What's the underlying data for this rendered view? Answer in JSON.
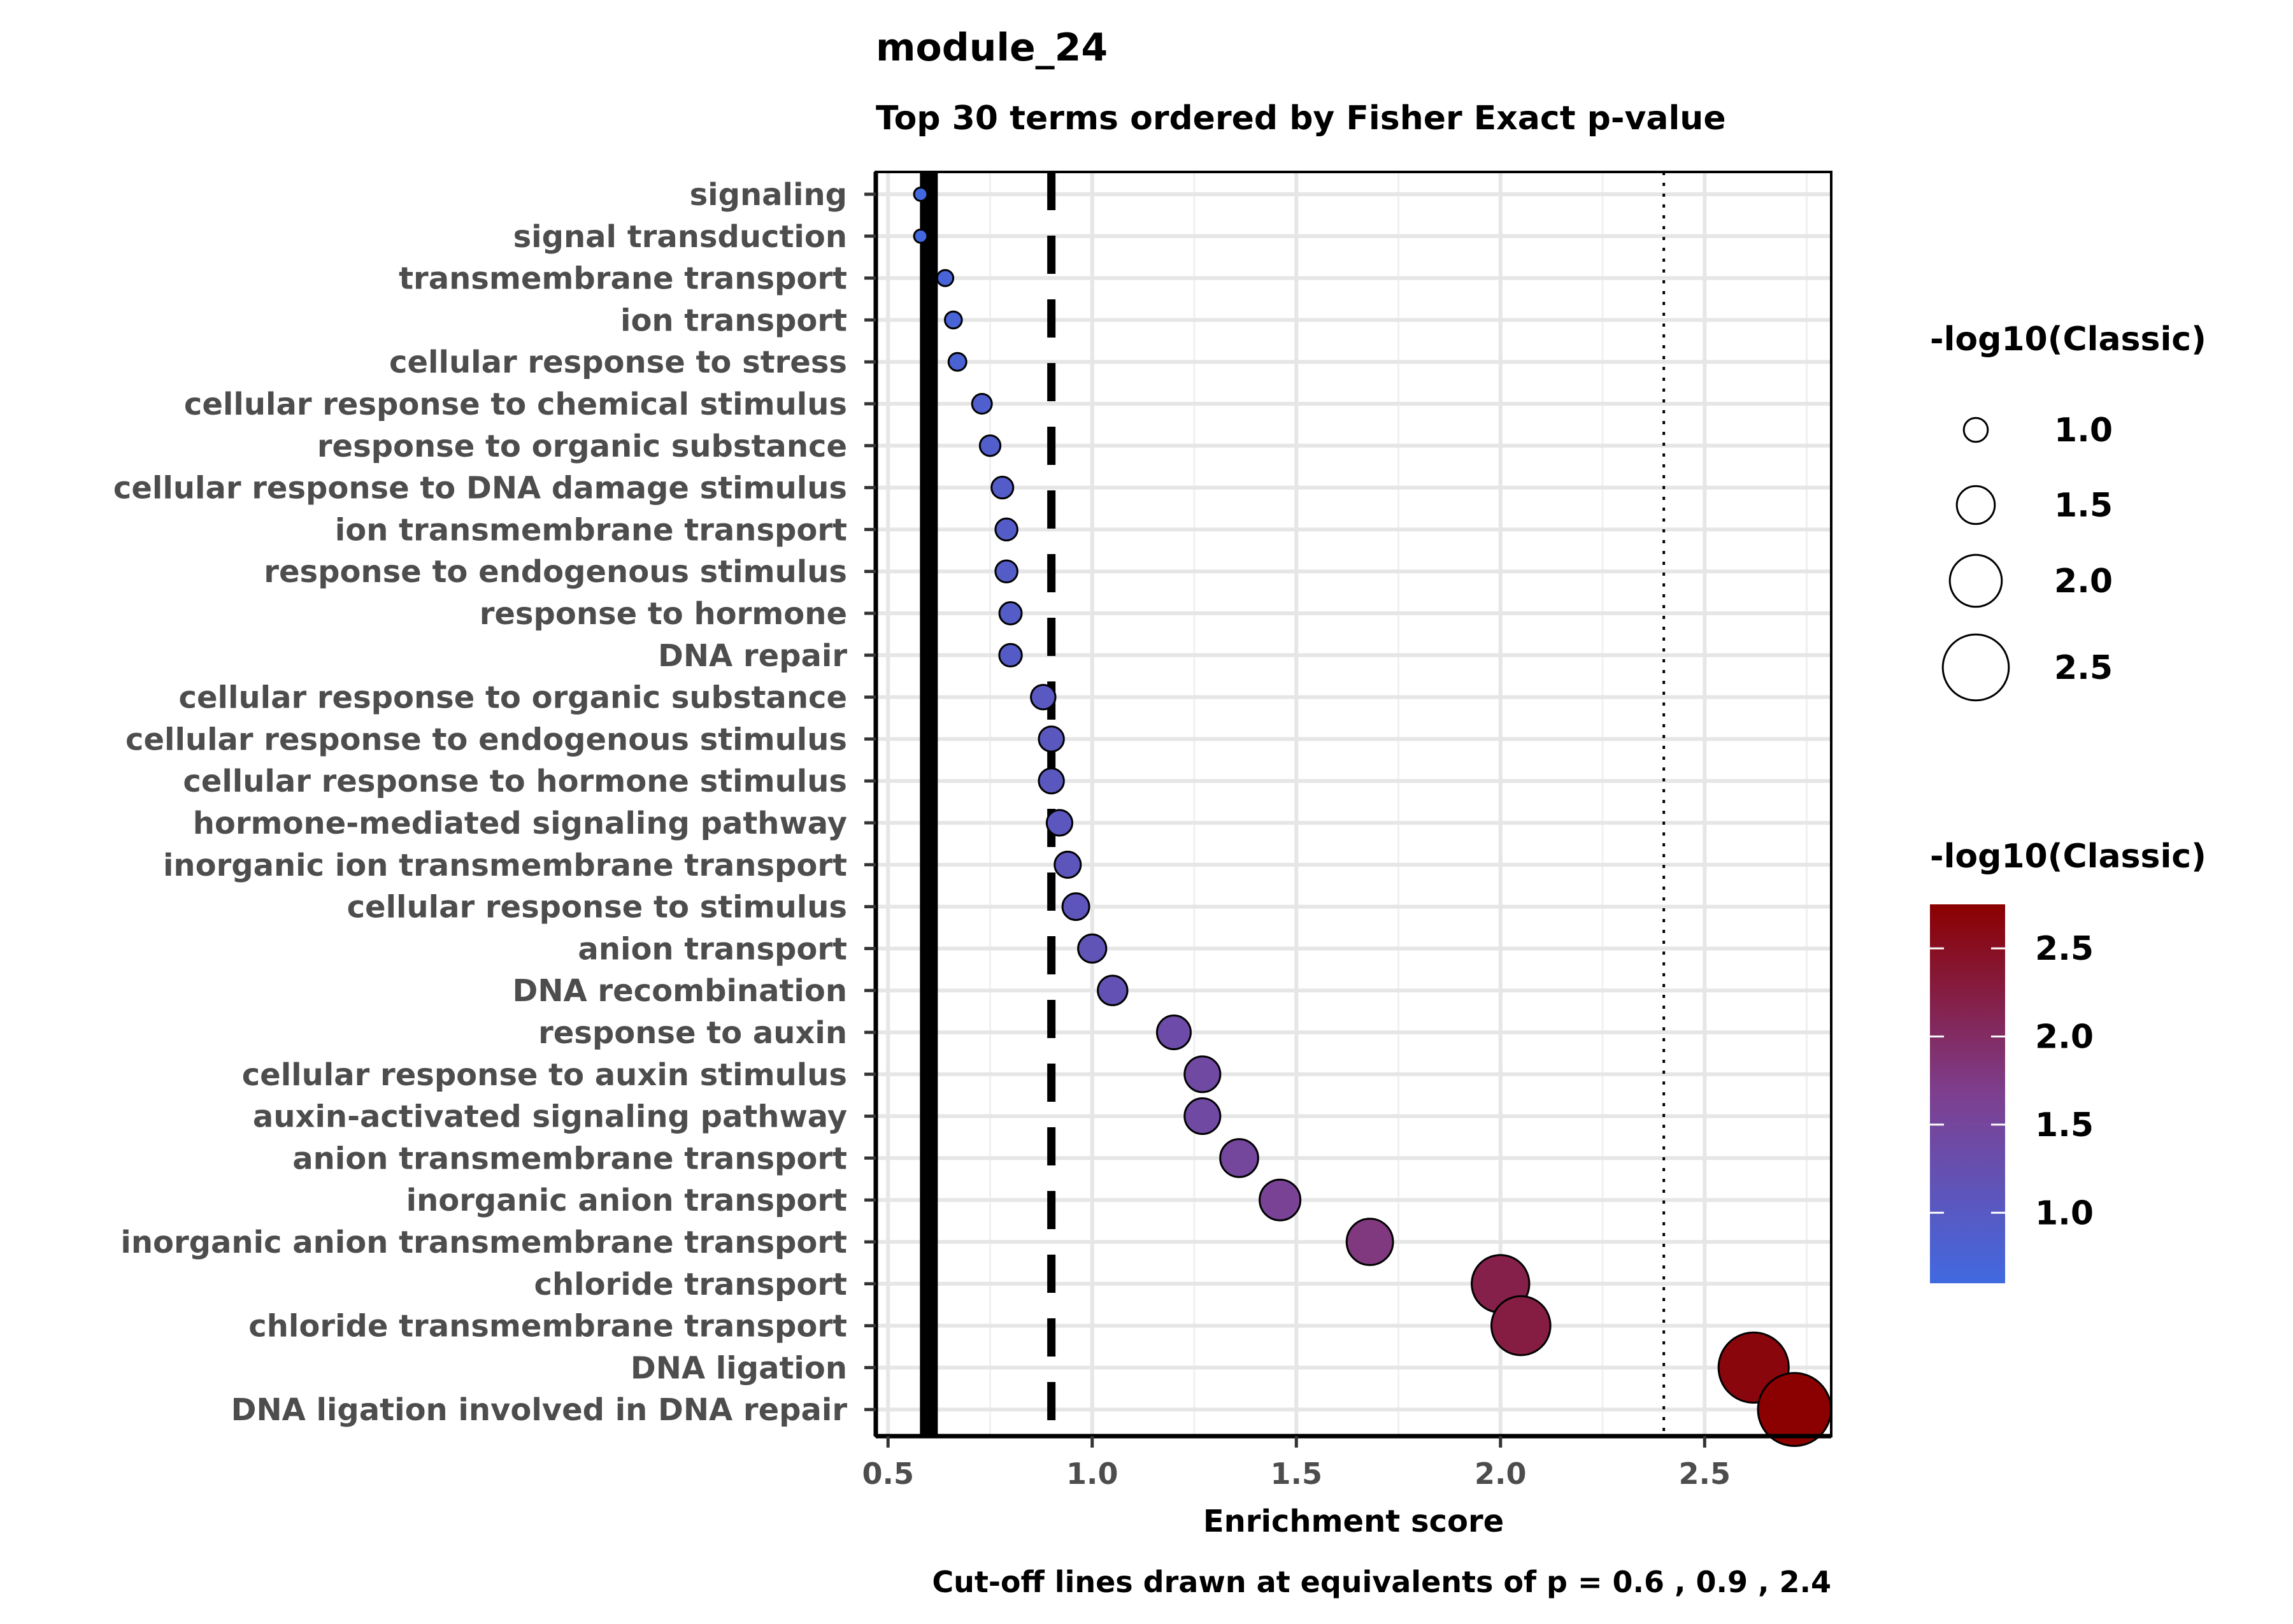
{
  "chart_data": {
    "type": "scatter",
    "title": "module_24",
    "subtitle": "Top 30 terms ordered by Fisher Exact p-value",
    "xlabel": "Enrichment score",
    "caption": "Cut-off lines drawn at equivalents of p = 0.6 , 0.9 , 2.4",
    "xlim": [
      0.47,
      2.81
    ],
    "xticks": [
      0.5,
      1.0,
      1.5,
      2.0,
      2.5
    ],
    "xtick_labels": [
      "0.5",
      "1.0",
      "1.5",
      "2.0",
      "2.5"
    ],
    "grid": true,
    "cutoff_lines": [
      {
        "x": 0.6,
        "style": "solid"
      },
      {
        "x": 0.9,
        "style": "dashed"
      },
      {
        "x": 2.4,
        "style": "dotted"
      }
    ],
    "terms": [
      {
        "label": "signaling",
        "x": 0.58,
        "value": 0.62
      },
      {
        "label": "signal transduction",
        "x": 0.58,
        "value": 0.62
      },
      {
        "label": "transmembrane transport",
        "x": 0.64,
        "value": 0.72
      },
      {
        "label": "ion transport",
        "x": 0.66,
        "value": 0.75
      },
      {
        "label": "cellular response to stress",
        "x": 0.67,
        "value": 0.78
      },
      {
        "label": "cellular response to chemical stimulus",
        "x": 0.73,
        "value": 0.85
      },
      {
        "label": "response to organic substance",
        "x": 0.75,
        "value": 0.88
      },
      {
        "label": "cellular response to DNA damage stimulus",
        "x": 0.78,
        "value": 0.92
      },
      {
        "label": "ion transmembrane transport",
        "x": 0.79,
        "value": 0.93
      },
      {
        "label": "response to endogenous stimulus",
        "x": 0.79,
        "value": 0.93
      },
      {
        "label": "response to hormone",
        "x": 0.8,
        "value": 0.94
      },
      {
        "label": "DNA repair",
        "x": 0.8,
        "value": 0.95
      },
      {
        "label": "cellular response to organic substance",
        "x": 0.88,
        "value": 1.02
      },
      {
        "label": "cellular response to endogenous stimulus",
        "x": 0.9,
        "value": 1.04
      },
      {
        "label": "cellular response to hormone stimulus",
        "x": 0.9,
        "value": 1.04
      },
      {
        "label": "hormone-mediated signaling pathway",
        "x": 0.92,
        "value": 1.06
      },
      {
        "label": "inorganic ion transmembrane transport",
        "x": 0.94,
        "value": 1.08
      },
      {
        "label": "cellular response to stimulus",
        "x": 0.96,
        "value": 1.1
      },
      {
        "label": "anion transport",
        "x": 1.0,
        "value": 1.15
      },
      {
        "label": "DNA recombination",
        "x": 1.05,
        "value": 1.2
      },
      {
        "label": "response to auxin",
        "x": 1.2,
        "value": 1.35
      },
      {
        "label": "cellular response to auxin stimulus",
        "x": 1.27,
        "value": 1.42
      },
      {
        "label": "auxin-activated signaling pathway",
        "x": 1.27,
        "value": 1.42
      },
      {
        "label": "anion transmembrane transport",
        "x": 1.36,
        "value": 1.5
      },
      {
        "label": "inorganic anion transport",
        "x": 1.46,
        "value": 1.6
      },
      {
        "label": "inorganic anion transmembrane transport",
        "x": 1.68,
        "value": 1.8
      },
      {
        "label": "chloride transport",
        "x": 2.0,
        "value": 2.2
      },
      {
        "label": "chloride transmembrane transport",
        "x": 2.05,
        "value": 2.25
      },
      {
        "label": "DNA ligation",
        "x": 2.62,
        "value": 2.65
      },
      {
        "label": "DNA ligation involved in DNA repair",
        "x": 2.72,
        "value": 2.75
      }
    ],
    "size_legend": {
      "title": "-log10(Classic)",
      "values": [
        1.0,
        1.5,
        2.0,
        2.5
      ],
      "labels": [
        "1.0",
        "1.5",
        "2.0",
        "2.5"
      ]
    },
    "color_legend": {
      "title": "-log10(Classic)",
      "range": [
        0.6,
        2.75
      ],
      "ticks": [
        1.0,
        1.5,
        2.0,
        2.5
      ],
      "tick_labels": [
        "1.0",
        "1.5",
        "2.0",
        "2.5"
      ],
      "low_color": "#4169E1",
      "mid_color": "#7E3F8F",
      "high_color": "#8B0000"
    }
  }
}
